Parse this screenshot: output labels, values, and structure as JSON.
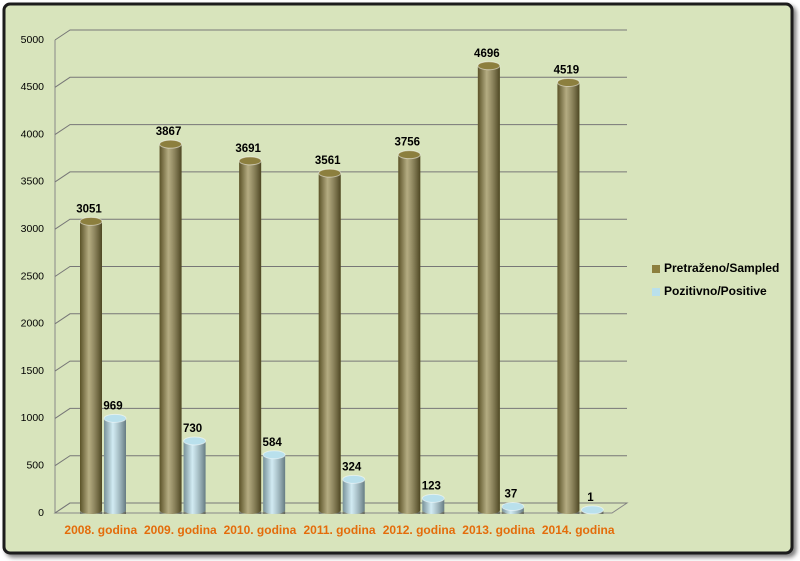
{
  "chart_data": {
    "type": "bar",
    "categories": [
      "2008. godina",
      "2009. godina",
      "2010. godina",
      "2011. godina",
      "2012. godina",
      "2013. godina",
      "2014. godina"
    ],
    "series": [
      {
        "name": "Pretraženo/Sampled",
        "color": "#8c7f3e",
        "values": [
          3051,
          3867,
          3691,
          3561,
          3756,
          4696,
          4519
        ]
      },
      {
        "name": "Pozitivno/Positive",
        "color": "#b9e0ec",
        "values": [
          969,
          730,
          584,
          324,
          123,
          37,
          1
        ]
      }
    ],
    "ylim": [
      0,
      5000
    ],
    "yticks": [
      0,
      500,
      1000,
      1500,
      2000,
      2500,
      3000,
      3500,
      4000,
      4500,
      5000
    ],
    "grid": true,
    "legend": "right"
  }
}
